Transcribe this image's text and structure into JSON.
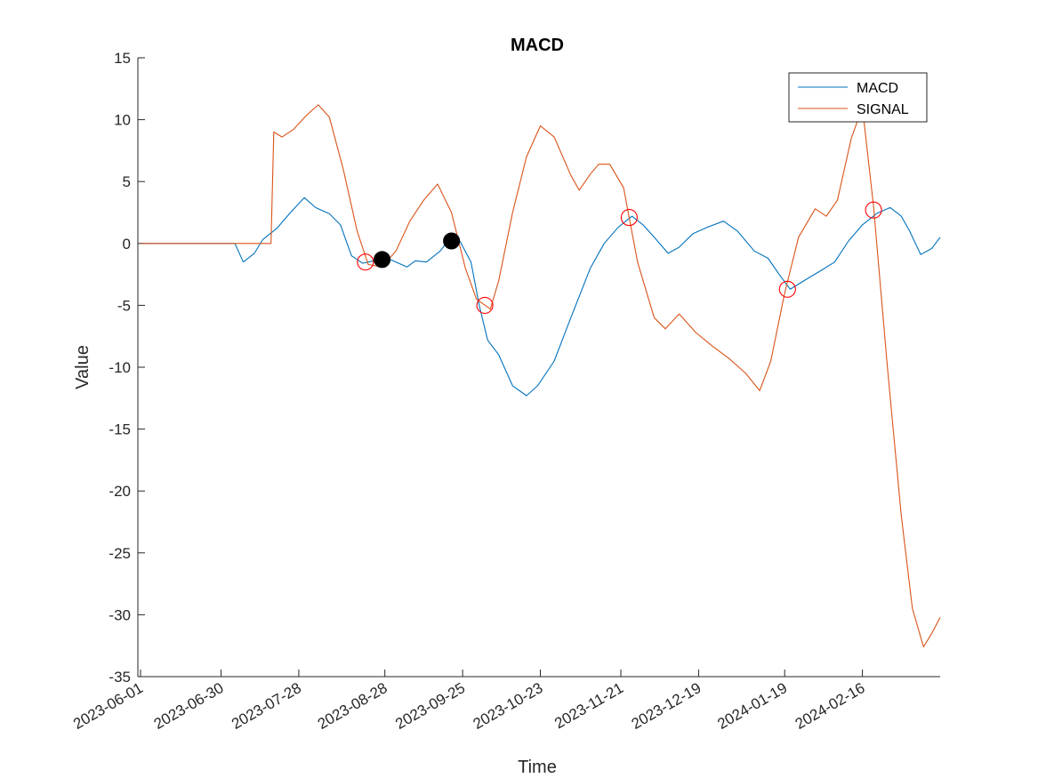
{
  "chart_data": {
    "type": "line",
    "title": "MACD",
    "xlabel": "Time",
    "ylabel": "Value",
    "xlim": [
      "2023-06-01",
      "2024-03-15"
    ],
    "ylim": [
      -35,
      15
    ],
    "y_ticks": [
      15,
      10,
      5,
      0,
      -5,
      -10,
      -15,
      -20,
      -25,
      -30,
      -35
    ],
    "x_ticks": [
      "2023-06-01",
      "2023-06-30",
      "2023-07-28",
      "2023-08-28",
      "2023-09-25",
      "2023-10-23",
      "2023-11-21",
      "2023-12-19",
      "2024-01-19",
      "2024-02-16"
    ],
    "grid": false,
    "legend_position": "top-right",
    "series": [
      {
        "name": "MACD",
        "color": "#0072BD",
        "points": [
          [
            "2023-06-01",
            0
          ],
          [
            "2023-07-05",
            0
          ],
          [
            "2023-07-08",
            -1.5
          ],
          [
            "2023-07-12",
            -0.8
          ],
          [
            "2023-07-15",
            0.3
          ],
          [
            "2023-07-20",
            1.2
          ],
          [
            "2023-07-25",
            2.5
          ],
          [
            "2023-07-30",
            3.7
          ],
          [
            "2023-08-03",
            2.9
          ],
          [
            "2023-08-08",
            2.4
          ],
          [
            "2023-08-12",
            1.5
          ],
          [
            "2023-08-16",
            -1.0
          ],
          [
            "2023-08-20",
            -1.6
          ],
          [
            "2023-08-24",
            -1.4
          ],
          [
            "2023-08-29",
            -1.2
          ],
          [
            "2023-09-02",
            -1.6
          ],
          [
            "2023-09-05",
            -1.9
          ],
          [
            "2023-09-08",
            -1.4
          ],
          [
            "2023-09-12",
            -1.5
          ],
          [
            "2023-09-17",
            -0.6
          ],
          [
            "2023-09-20",
            0.3
          ],
          [
            "2023-09-24",
            0.2
          ],
          [
            "2023-09-28",
            -1.5
          ],
          [
            "2023-10-01",
            -5.0
          ],
          [
            "2023-10-04",
            -7.8
          ],
          [
            "2023-10-08",
            -9.0
          ],
          [
            "2023-10-13",
            -11.5
          ],
          [
            "2023-10-18",
            -12.3
          ],
          [
            "2023-10-22",
            -11.5
          ],
          [
            "2023-10-28",
            -9.5
          ],
          [
            "2023-11-03",
            -6.0
          ],
          [
            "2023-11-10",
            -2.0
          ],
          [
            "2023-11-15",
            0.0
          ],
          [
            "2023-11-20",
            1.3
          ],
          [
            "2023-11-25",
            2.2
          ],
          [
            "2023-11-29",
            1.5
          ],
          [
            "2023-12-03",
            0.5
          ],
          [
            "2023-12-08",
            -0.8
          ],
          [
            "2023-12-12",
            -0.3
          ],
          [
            "2023-12-17",
            0.8
          ],
          [
            "2023-12-22",
            1.3
          ],
          [
            "2023-12-28",
            1.8
          ],
          [
            "2024-01-02",
            1.0
          ],
          [
            "2024-01-08",
            -0.6
          ],
          [
            "2024-01-13",
            -1.2
          ],
          [
            "2024-01-17",
            -2.5
          ],
          [
            "2024-01-21",
            -3.7
          ],
          [
            "2024-01-26",
            -3.0
          ],
          [
            "2024-02-01",
            -2.2
          ],
          [
            "2024-02-06",
            -1.5
          ],
          [
            "2024-02-11",
            0.2
          ],
          [
            "2024-02-16",
            1.5
          ],
          [
            "2024-02-21",
            2.4
          ],
          [
            "2024-02-26",
            2.9
          ],
          [
            "2024-03-01",
            2.2
          ],
          [
            "2024-03-04",
            1.0
          ],
          [
            "2024-03-08",
            -0.9
          ],
          [
            "2024-03-12",
            -0.4
          ],
          [
            "2024-03-15",
            0.5
          ]
        ]
      },
      {
        "name": "SIGNAL",
        "color": "#D95319",
        "points": [
          [
            "2023-06-01",
            0
          ],
          [
            "2023-07-18",
            0
          ],
          [
            "2023-07-19",
            9.0
          ],
          [
            "2023-07-22",
            8.6
          ],
          [
            "2023-07-26",
            9.2
          ],
          [
            "2023-07-31",
            10.4
          ],
          [
            "2023-08-04",
            11.2
          ],
          [
            "2023-08-08",
            10.2
          ],
          [
            "2023-08-13",
            6.0
          ],
          [
            "2023-08-18",
            1.0
          ],
          [
            "2023-08-22",
            -1.7
          ],
          [
            "2023-08-27",
            -1.9
          ],
          [
            "2023-09-01",
            -0.6
          ],
          [
            "2023-09-06",
            1.8
          ],
          [
            "2023-09-11",
            3.5
          ],
          [
            "2023-09-16",
            4.8
          ],
          [
            "2023-09-21",
            2.5
          ],
          [
            "2023-09-26",
            -2.0
          ],
          [
            "2023-09-30",
            -4.5
          ],
          [
            "2023-10-05",
            -5.3
          ],
          [
            "2023-10-08",
            -3.0
          ],
          [
            "2023-10-13",
            2.5
          ],
          [
            "2023-10-18",
            7.0
          ],
          [
            "2023-10-23",
            9.5
          ],
          [
            "2023-10-28",
            8.6
          ],
          [
            "2023-11-03",
            5.5
          ],
          [
            "2023-11-06",
            4.3
          ],
          [
            "2023-11-10",
            5.6
          ],
          [
            "2023-11-13",
            6.4
          ],
          [
            "2023-11-17",
            6.4
          ],
          [
            "2023-11-22",
            4.5
          ],
          [
            "2023-11-27",
            -1.5
          ],
          [
            "2023-12-03",
            -6.0
          ],
          [
            "2023-12-07",
            -6.9
          ],
          [
            "2023-12-12",
            -5.7
          ],
          [
            "2023-12-18",
            -7.2
          ],
          [
            "2023-12-24",
            -8.3
          ],
          [
            "2023-12-30",
            -9.3
          ],
          [
            "2024-01-05",
            -10.5
          ],
          [
            "2024-01-10",
            -11.9
          ],
          [
            "2024-01-14",
            -9.5
          ],
          [
            "2024-01-19",
            -4.0
          ],
          [
            "2024-01-24",
            0.5
          ],
          [
            "2024-01-30",
            2.8
          ],
          [
            "2024-02-03",
            2.2
          ],
          [
            "2024-02-07",
            3.5
          ],
          [
            "2024-02-12",
            8.5
          ],
          [
            "2024-02-16",
            11.0
          ],
          [
            "2024-02-20",
            3.0
          ],
          [
            "2024-02-25",
            -10.0
          ],
          [
            "2024-03-01",
            -22.0
          ],
          [
            "2024-03-05",
            -29.5
          ],
          [
            "2024-03-09",
            -32.6
          ],
          [
            "2024-03-12",
            -31.5
          ],
          [
            "2024-03-15",
            -30.2
          ]
        ]
      }
    ],
    "crossovers_open_red": [
      [
        "2023-08-21",
        -1.5
      ],
      [
        "2023-10-03",
        -5.0
      ],
      [
        "2023-11-24",
        2.1
      ],
      [
        "2024-01-20",
        -3.7
      ],
      [
        "2024-02-20",
        2.7
      ]
    ],
    "crossovers_filled_black": [
      [
        "2023-08-27",
        -1.3
      ],
      [
        "2023-09-21",
        0.2
      ]
    ]
  }
}
